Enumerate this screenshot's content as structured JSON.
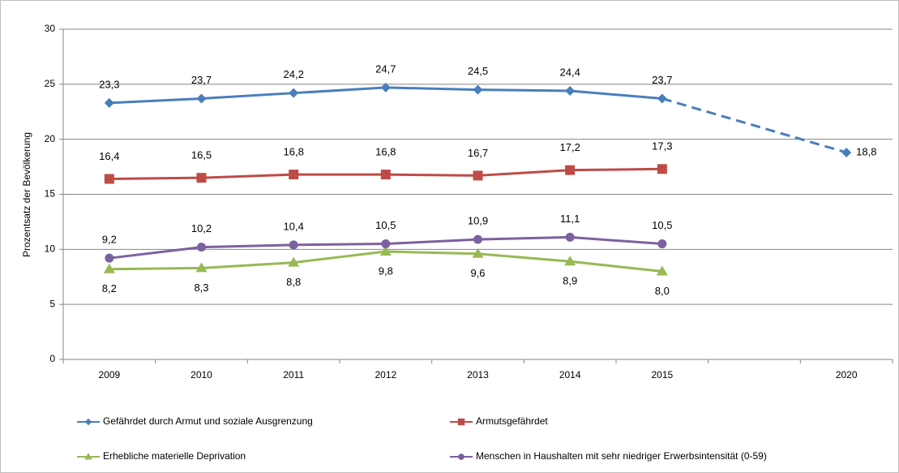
{
  "chart_data": {
    "type": "line",
    "y_label": "Prozentsatz der Bevölkerung",
    "categories": [
      "2009",
      "2010",
      "2011",
      "2012",
      "2013",
      "2014",
      "2015",
      null,
      "2020"
    ],
    "ylim": [
      0,
      30
    ],
    "yticks": [
      0,
      5,
      10,
      15,
      20,
      25,
      30
    ],
    "grid": true,
    "series": [
      {
        "name": "Gefährdet durch Armut und soziale Ausgrenzung",
        "color": "#4a7ebb",
        "marker": "diamond",
        "gap_style": "dashed",
        "values": [
          23.3,
          23.7,
          24.2,
          24.7,
          24.5,
          24.4,
          23.7,
          null,
          18.8
        ],
        "value_labels": [
          "23,3",
          "23,7",
          "24,2",
          "24,7",
          "24,5",
          "24,4",
          "23,7",
          null,
          "18,8"
        ]
      },
      {
        "name": "Armutsgefährdet",
        "color": "#be4b48",
        "marker": "square",
        "values": [
          16.4,
          16.5,
          16.8,
          16.8,
          16.7,
          17.2,
          17.3,
          null,
          null
        ],
        "value_labels": [
          "16,4",
          "16,5",
          "16,8",
          "16,8",
          "16,7",
          "17,2",
          "17,3",
          null,
          null
        ]
      },
      {
        "name": "Erhebliche materielle Deprivation",
        "color": "#98b954",
        "marker": "triangle",
        "values": [
          8.2,
          8.3,
          8.8,
          9.8,
          9.6,
          8.9,
          8.0,
          null,
          null
        ],
        "value_labels": [
          "8,2",
          "8,3",
          "8,8",
          "9,8",
          "9,6",
          "8,9",
          "8,0",
          null,
          null
        ]
      },
      {
        "name": "Menschen in Haushalten mit sehr niedriger Erwerbsintensität (0-59)",
        "color": "#7d60a0",
        "marker": "circle",
        "values": [
          9.2,
          10.2,
          10.4,
          10.5,
          10.9,
          11.1,
          10.5,
          null,
          null
        ],
        "value_labels": [
          "9,2",
          "10,2",
          "10,4",
          "10,5",
          "10,9",
          "11,1",
          "10,5",
          null,
          null
        ]
      }
    ]
  }
}
